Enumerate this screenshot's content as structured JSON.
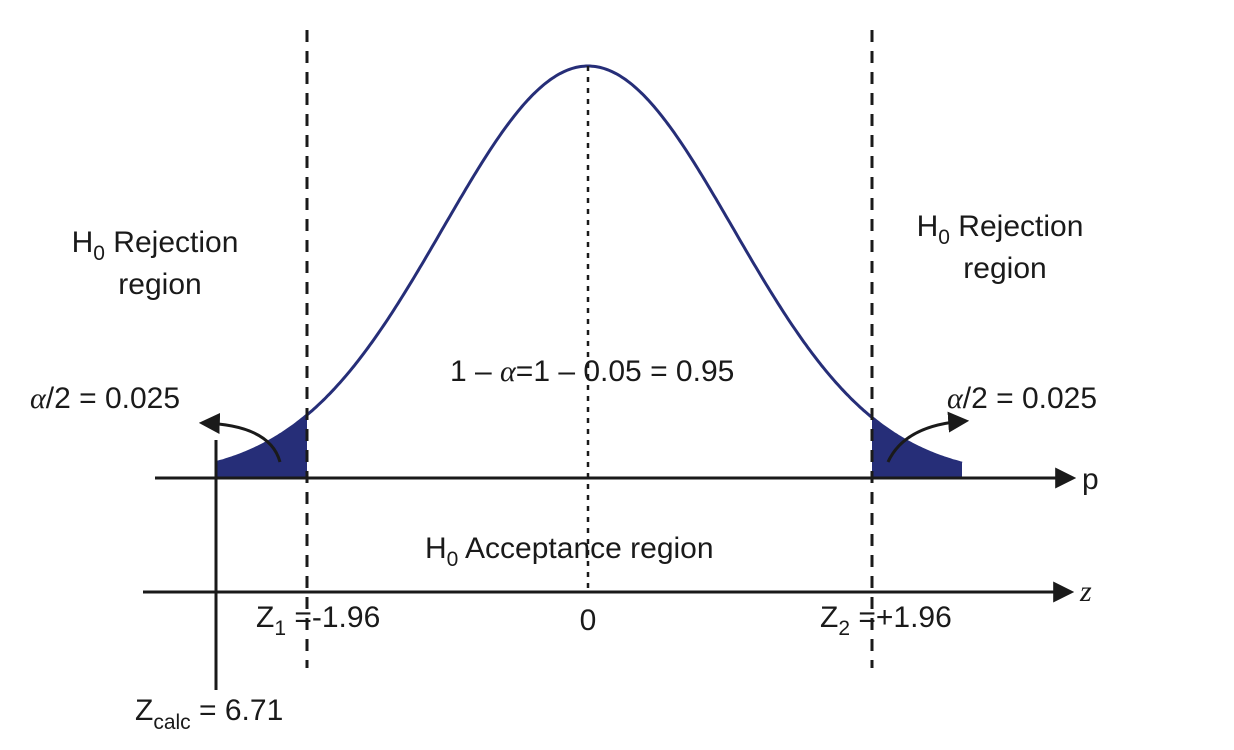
{
  "colors": {
    "curve": "#262e78",
    "tail_fill": "#262e78",
    "axis": "#1a1a1a"
  },
  "labels": {
    "left_rejection": {
      "h": "H",
      "sub": "0",
      "line1_rest": " Rejection",
      "line2": "region"
    },
    "right_rejection": {
      "h": "H",
      "sub": "0",
      "line1_rest": " Rejection",
      "line2": "region"
    },
    "left_alpha": {
      "alpha": "α",
      "rest": "/2 = 0.025"
    },
    "right_alpha": {
      "alpha": "α",
      "rest": "/2 = 0.025"
    },
    "center_confidence": {
      "pre": "1 – ",
      "alpha": "α",
      "post": "=1 – 0.05 = 0.95"
    },
    "acceptance": {
      "h": "H",
      "sub": "0",
      "rest": " Acceptance region"
    },
    "z1": {
      "z": "Z",
      "sub": "1",
      "eq": " =",
      "val": "-1.96"
    },
    "z2": {
      "z": "Z",
      "sub": "2",
      "eq": " =",
      "val": "+1.96"
    },
    "zero": "0",
    "zcalc": {
      "z": "Z",
      "sub": "calc",
      "rest": " = 6.71"
    },
    "axis_p": "p",
    "axis_z": "z"
  }
}
